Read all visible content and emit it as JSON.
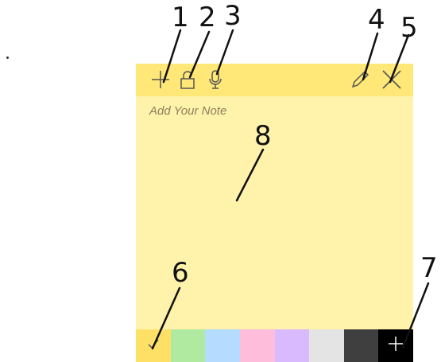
{
  "note": {
    "placeholder": "Add Your Note",
    "header_color": "#ffe877",
    "body_color": "#fff2ab",
    "header_icons": [
      "plus-icon",
      "lock-icon",
      "microphone-icon",
      "pencil-icon",
      "close-icon"
    ]
  },
  "palette": {
    "colors": [
      "#ffe066",
      "#b0eaa0",
      "#b5dcff",
      "#ffbddc",
      "#dabaff",
      "#e4e4e4",
      "#3f3f3f",
      "#000000"
    ],
    "selected_index": 0,
    "last_swatch_icon": "plus-icon",
    "selected_icon": "checkmark-icon"
  },
  "annotations": [
    "1",
    "2",
    "3",
    "4",
    "5",
    "6",
    "7",
    "8"
  ]
}
